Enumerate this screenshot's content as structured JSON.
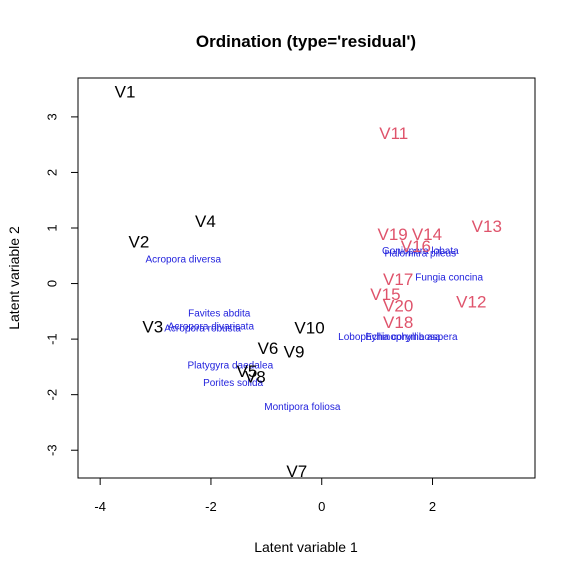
{
  "chart_data": {
    "type": "scatter",
    "title": "Ordination (type='residual')",
    "xlabel": "Latent variable 1",
    "ylabel": "Latent variable 2",
    "xlim": [
      -4.4,
      3.85
    ],
    "ylim": [
      -3.5,
      3.7
    ],
    "xticks": [
      -4,
      -2,
      0,
      2
    ],
    "yticks": [
      -3,
      -2,
      -1,
      0,
      1,
      2,
      3
    ],
    "grid": false,
    "legend": "none",
    "colors": {
      "site_group_a": "#000000",
      "site_group_b": "#DF536B",
      "species": "#2222DD",
      "axes": "#000000"
    },
    "sites": [
      {
        "label": "V1",
        "x": -3.55,
        "y": 3.45,
        "group": "a"
      },
      {
        "label": "V2",
        "x": -3.3,
        "y": 0.75,
        "group": "a"
      },
      {
        "label": "V3",
        "x": -3.05,
        "y": -0.78,
        "group": "a"
      },
      {
        "label": "V4",
        "x": -2.1,
        "y": 1.12,
        "group": "a"
      },
      {
        "label": "V5",
        "x": -1.35,
        "y": -1.58,
        "group": "a"
      },
      {
        "label": "V6",
        "x": -0.97,
        "y": -1.17,
        "group": "a"
      },
      {
        "label": "V7",
        "x": -0.45,
        "y": -3.38,
        "group": "a"
      },
      {
        "label": "V8",
        "x": -1.2,
        "y": -1.68,
        "group": "a"
      },
      {
        "label": "V9",
        "x": -0.5,
        "y": -1.23,
        "group": "a"
      },
      {
        "label": "V10",
        "x": -0.22,
        "y": -0.8,
        "group": "a"
      },
      {
        "label": "V11",
        "x": 1.3,
        "y": 2.7,
        "group": "b"
      },
      {
        "label": "V12",
        "x": 2.7,
        "y": -0.33,
        "group": "b"
      },
      {
        "label": "V13",
        "x": 2.98,
        "y": 1.03,
        "group": "b"
      },
      {
        "label": "V14",
        "x": 1.9,
        "y": 0.88,
        "group": "b"
      },
      {
        "label": "V15",
        "x": 1.15,
        "y": -0.2,
        "group": "b"
      },
      {
        "label": "V16",
        "x": 1.7,
        "y": 0.67,
        "group": "b"
      },
      {
        "label": "V17",
        "x": 1.38,
        "y": 0.07,
        "group": "b"
      },
      {
        "label": "V18",
        "x": 1.38,
        "y": -0.7,
        "group": "b"
      },
      {
        "label": "V19",
        "x": 1.28,
        "y": 0.88,
        "group": "b"
      },
      {
        "label": "V20",
        "x": 1.38,
        "y": -0.4,
        "group": "b"
      }
    ],
    "species": [
      {
        "label": "Acropora diversa",
        "x": -2.5,
        "y": 0.42
      },
      {
        "label": "Favites abdita",
        "x": -1.85,
        "y": -0.55
      },
      {
        "label": "Acropora divaricata",
        "x": -2.0,
        "y": -0.78
      },
      {
        "label": "Acropora robusta",
        "x": -2.15,
        "y": -0.82
      },
      {
        "label": "Platygyra daedalea",
        "x": -1.65,
        "y": -1.48
      },
      {
        "label": "Porites solida",
        "x": -1.6,
        "y": -1.8
      },
      {
        "label": "Montipora foliosa",
        "x": -0.35,
        "y": -2.23
      },
      {
        "label": "Goniopora lobata",
        "x": 1.78,
        "y": 0.58
      },
      {
        "label": "Halomitra pileus",
        "x": 1.78,
        "y": 0.53
      },
      {
        "label": "Fungia concina",
        "x": 2.3,
        "y": 0.1
      },
      {
        "label": "Lobophyllia corymbosa",
        "x": 1.22,
        "y": -0.97
      },
      {
        "label": "Echinophyllia aspera",
        "x": 1.62,
        "y": -0.97
      }
    ]
  }
}
